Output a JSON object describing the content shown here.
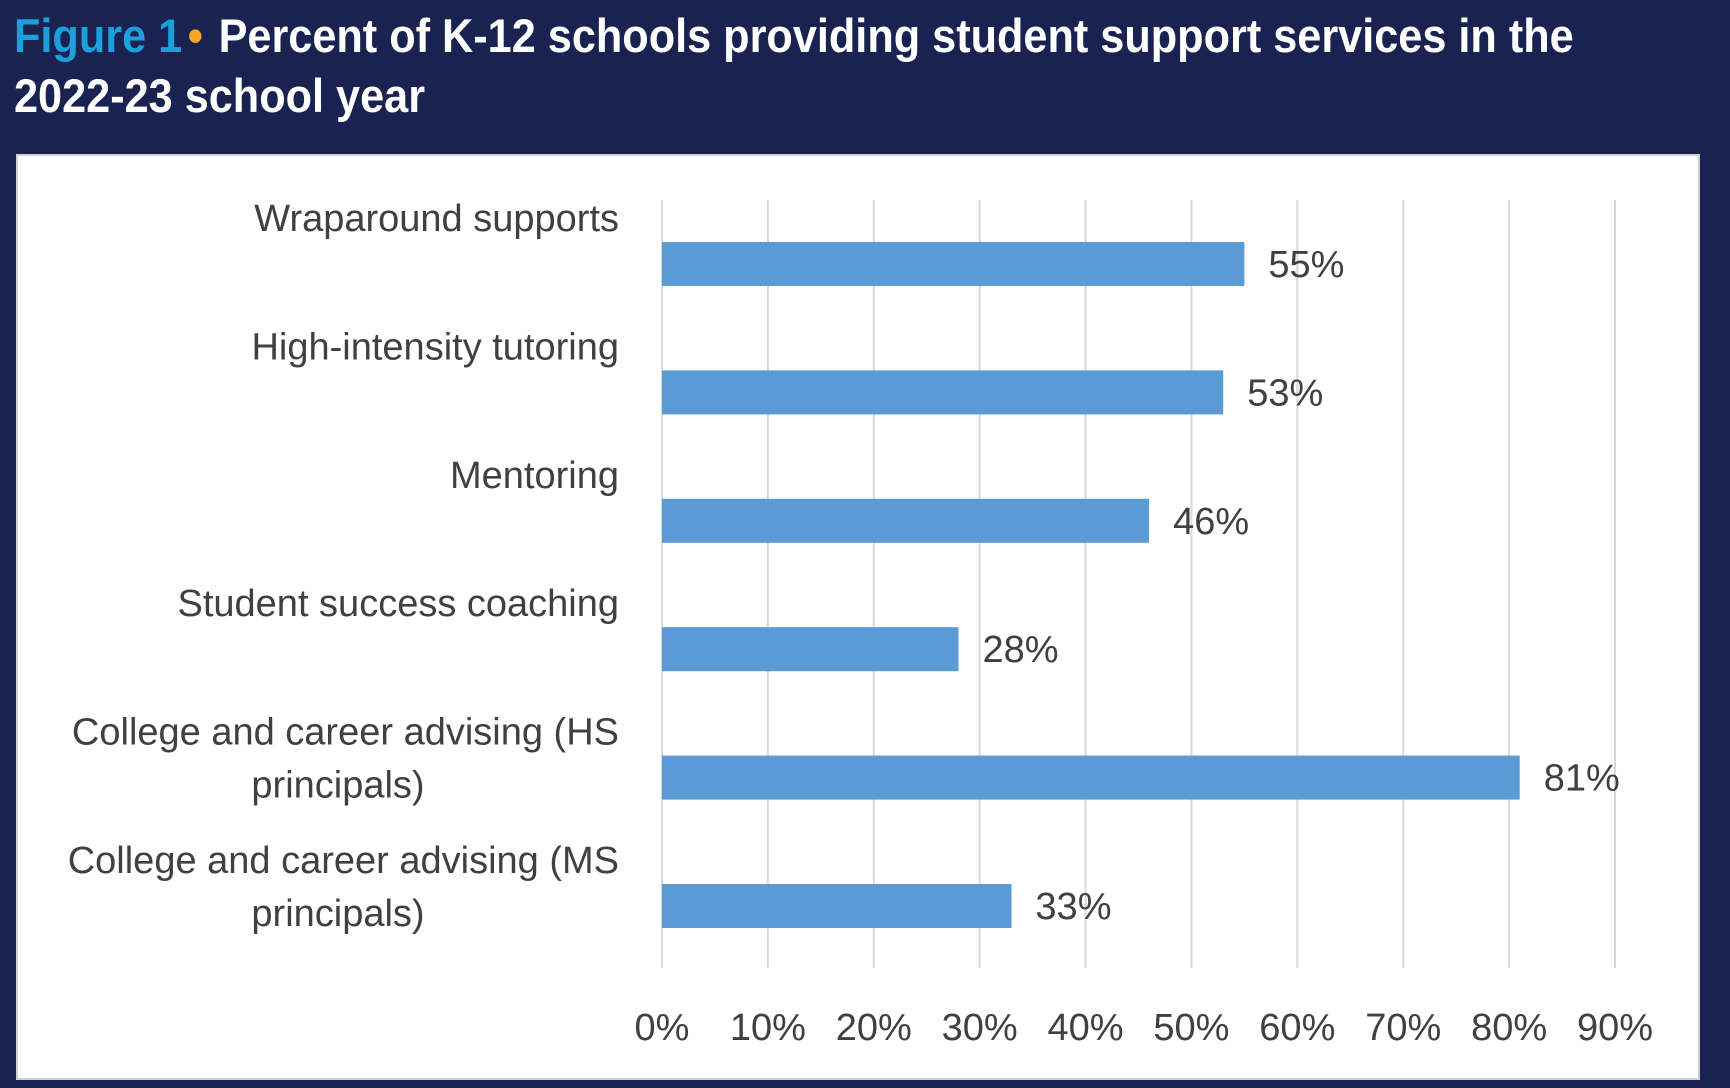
{
  "header": {
    "figure_label": "Figure 1",
    "bullet": "•",
    "title": "Percent of K-12 schools providing student support services in the 2022-23 school year"
  },
  "colors": {
    "background": "#1a2251",
    "figure_label": "#1aa0dc",
    "bullet": "#f5a623",
    "bar": "#5b9bd5"
  },
  "chart_data": {
    "type": "bar",
    "orientation": "horizontal",
    "title": "Percent of K-12 schools providing student support services in the 2022-23 school year",
    "categories": [
      [
        "Wraparound supports"
      ],
      [
        "High-intensity tutoring"
      ],
      [
        "Mentoring"
      ],
      [
        "Student success coaching"
      ],
      [
        "College and career advising (HS",
        "principals)"
      ],
      [
        "College and career advising (MS",
        "principals)"
      ]
    ],
    "values": [
      55,
      53,
      46,
      28,
      81,
      33
    ],
    "data_labels": [
      "55%",
      "53%",
      "46%",
      "28%",
      "81%",
      "33%"
    ],
    "xlim": [
      0,
      90
    ],
    "xticks": [
      0,
      10,
      20,
      30,
      40,
      50,
      60,
      70,
      80,
      90
    ],
    "xtick_labels": [
      "0%",
      "10%",
      "20%",
      "30%",
      "40%",
      "50%",
      "60%",
      "70%",
      "80%",
      "90%"
    ],
    "grid": "vertical",
    "legend": "none"
  }
}
